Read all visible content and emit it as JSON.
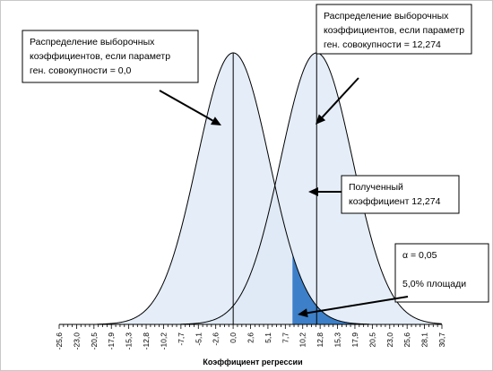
{
  "chart_data": {
    "type": "area",
    "xlabel": "Коэффициент регрессии",
    "x_ticks": [
      "-25,6",
      "-23,0",
      "-20,5",
      "-17,9",
      "-15,3",
      "-12,8",
      "-10,2",
      "-7,7",
      "-5,1",
      "-2,6",
      "0,0",
      "2,6",
      "5,1",
      "7,7",
      "10,2",
      "12,8",
      "15,3",
      "17,9",
      "20,5",
      "23,0",
      "25,6",
      "28,1",
      "30,7"
    ],
    "xlim": [
      -25.6,
      30.7
    ],
    "series": [
      {
        "mean": 0.0,
        "sd": 5.3
      },
      {
        "mean": 12.274,
        "sd": 5.3
      }
    ],
    "critical_value": 8.72,
    "alpha": 0.05,
    "observed_value": 12.274,
    "annotations": [
      {
        "id": "left",
        "lines": [
          "Распределение выборочных",
          "коэффициентов, если параметр",
          "ген. совокупности = 0,0"
        ]
      },
      {
        "id": "right",
        "lines": [
          "Распределение выборочных",
          "коэффициентов, если параметр",
          "ген. совокупности  = 12,274"
        ]
      },
      {
        "id": "obs",
        "lines": [
          "Полученный",
          "коэффициент 12,274"
        ]
      },
      {
        "id": "alpha",
        "lines": [
          "α = 0,05",
          "",
          "5,0% площади"
        ]
      }
    ],
    "colors": {
      "fill": "#dce8f6",
      "shade": "#3d7fc8",
      "curve": "#000000"
    }
  }
}
